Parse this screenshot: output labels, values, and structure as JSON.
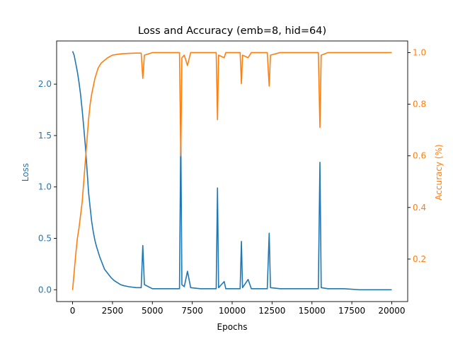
{
  "chart_data": {
    "type": "line",
    "title": "Loss and Accuracy (emb=8, hid=64)",
    "xlabel": "Epochs",
    "ylabel_left": "Loss",
    "ylabel_right": "Accuracy (%)",
    "xlim": [
      -1000,
      21000
    ],
    "ylim_left": [
      -0.115,
      2.42
    ],
    "ylim_right": [
      0.0355,
      1.045
    ],
    "x_ticks": [
      0,
      2500,
      5000,
      7500,
      10000,
      12500,
      15000,
      17500,
      20000
    ],
    "y_left_ticks": [
      0.0,
      0.5,
      1.0,
      1.5,
      2.0
    ],
    "y_right_ticks": [
      0.2,
      0.4,
      0.6,
      0.8,
      1.0
    ],
    "grid": false,
    "legend": "none",
    "series": [
      {
        "axis": "left",
        "color": "#1f77b4",
        "points": [
          [
            0,
            2.32
          ],
          [
            100,
            2.28
          ],
          [
            200,
            2.2
          ],
          [
            300,
            2.12
          ],
          [
            400,
            2.02
          ],
          [
            500,
            1.9
          ],
          [
            600,
            1.75
          ],
          [
            700,
            1.58
          ],
          [
            800,
            1.4
          ],
          [
            900,
            1.18
          ],
          [
            1000,
            0.95
          ],
          [
            1100,
            0.8
          ],
          [
            1200,
            0.66
          ],
          [
            1300,
            0.56
          ],
          [
            1400,
            0.48
          ],
          [
            1500,
            0.42
          ],
          [
            1600,
            0.37
          ],
          [
            1700,
            0.32
          ],
          [
            1800,
            0.28
          ],
          [
            1900,
            0.24
          ],
          [
            2000,
            0.2
          ],
          [
            2200,
            0.16
          ],
          [
            2400,
            0.12
          ],
          [
            2600,
            0.09
          ],
          [
            2800,
            0.07
          ],
          [
            3000,
            0.05
          ],
          [
            3200,
            0.04
          ],
          [
            3500,
            0.03
          ],
          [
            4000,
            0.02
          ],
          [
            4300,
            0.02
          ],
          [
            4400,
            0.43
          ],
          [
            4500,
            0.05
          ],
          [
            5000,
            0.01
          ],
          [
            6000,
            0.01
          ],
          [
            6700,
            0.01
          ],
          [
            6780,
            1.53
          ],
          [
            6850,
            0.05
          ],
          [
            7000,
            0.03
          ],
          [
            7200,
            0.18
          ],
          [
            7400,
            0.02
          ],
          [
            8000,
            0.01
          ],
          [
            9000,
            0.01
          ],
          [
            9080,
            0.99
          ],
          [
            9150,
            0.02
          ],
          [
            9500,
            0.08
          ],
          [
            9600,
            0.01
          ],
          [
            10500,
            0.01
          ],
          [
            10580,
            0.47
          ],
          [
            10650,
            0.02
          ],
          [
            11000,
            0.1
          ],
          [
            11200,
            0.01
          ],
          [
            12200,
            0.01
          ],
          [
            12320,
            0.55
          ],
          [
            12400,
            0.02
          ],
          [
            13000,
            0.01
          ],
          [
            15400,
            0.01
          ],
          [
            15500,
            1.24
          ],
          [
            15580,
            0.02
          ],
          [
            16000,
            0.01
          ],
          [
            17000,
            0.01
          ],
          [
            18000,
            0.0
          ],
          [
            19000,
            0.0
          ],
          [
            20000,
            0.0
          ]
        ]
      },
      {
        "axis": "right",
        "color": "#ff7f0e",
        "points": [
          [
            0,
            0.08
          ],
          [
            100,
            0.15
          ],
          [
            200,
            0.22
          ],
          [
            300,
            0.28
          ],
          [
            400,
            0.32
          ],
          [
            500,
            0.37
          ],
          [
            600,
            0.42
          ],
          [
            700,
            0.5
          ],
          [
            800,
            0.58
          ],
          [
            900,
            0.66
          ],
          [
            1000,
            0.74
          ],
          [
            1100,
            0.8
          ],
          [
            1200,
            0.84
          ],
          [
            1300,
            0.87
          ],
          [
            1400,
            0.9
          ],
          [
            1500,
            0.92
          ],
          [
            1600,
            0.94
          ],
          [
            1700,
            0.95
          ],
          [
            1800,
            0.96
          ],
          [
            2000,
            0.97
          ],
          [
            2200,
            0.98
          ],
          [
            2500,
            0.99
          ],
          [
            3000,
            0.995
          ],
          [
            3500,
            0.997
          ],
          [
            4000,
            0.998
          ],
          [
            4300,
            0.998
          ],
          [
            4400,
            0.9
          ],
          [
            4500,
            0.99
          ],
          [
            5000,
            1.0
          ],
          [
            6000,
            1.0
          ],
          [
            6700,
            1.0
          ],
          [
            6780,
            0.6
          ],
          [
            6850,
            0.98
          ],
          [
            7000,
            0.99
          ],
          [
            7200,
            0.95
          ],
          [
            7400,
            1.0
          ],
          [
            8000,
            1.0
          ],
          [
            9000,
            1.0
          ],
          [
            9080,
            0.74
          ],
          [
            9150,
            0.99
          ],
          [
            9500,
            0.98
          ],
          [
            9600,
            1.0
          ],
          [
            10500,
            1.0
          ],
          [
            10580,
            0.88
          ],
          [
            10650,
            0.99
          ],
          [
            11000,
            0.98
          ],
          [
            11200,
            1.0
          ],
          [
            12200,
            1.0
          ],
          [
            12320,
            0.87
          ],
          [
            12400,
            0.99
          ],
          [
            13000,
            1.0
          ],
          [
            15400,
            1.0
          ],
          [
            15500,
            0.71
          ],
          [
            15580,
            0.99
          ],
          [
            16000,
            1.0
          ],
          [
            17000,
            1.0
          ],
          [
            18000,
            1.0
          ],
          [
            19000,
            1.0
          ],
          [
            20000,
            1.0
          ]
        ]
      }
    ]
  }
}
